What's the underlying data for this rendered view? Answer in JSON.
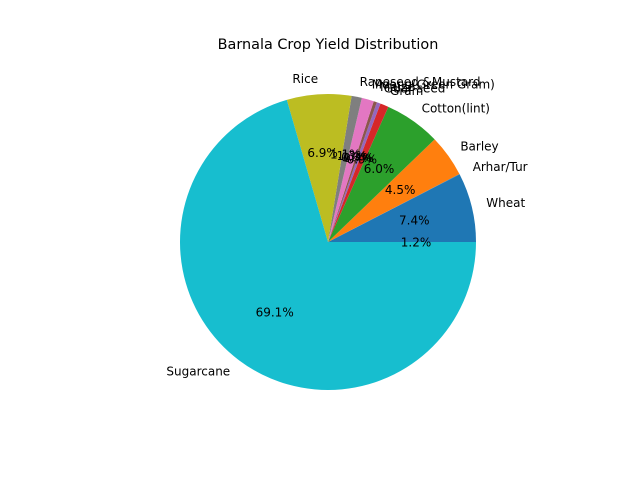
{
  "chart_data": {
    "type": "pie",
    "title": "Barnala Crop Yield Distribution",
    "start_angle_deg": 0,
    "direction": "counterclockwise",
    "slices": [
      {
        "label": "Wheat",
        "value": 7.4,
        "pct_label": "7.4%",
        "color": "#1f77b4"
      },
      {
        "label": "Arhar/Tur",
        "value": 0.05,
        "pct_label": "",
        "color": "#1f77b4"
      },
      {
        "label": "Barley",
        "value": 4.5,
        "pct_label": "4.5%",
        "color": "#ff7f0e"
      },
      {
        "label": "Cotton(lint)",
        "value": 6.0,
        "pct_label": "6.0%",
        "color": "#2ca02c"
      },
      {
        "label": "Gram",
        "value": 0.9,
        "pct_label": "0.9%",
        "color": "#d62728"
      },
      {
        "label": "Guar seed",
        "value": 0.4,
        "pct_label": "0.4%",
        "color": "#9467bd"
      },
      {
        "label": "Maize",
        "value": 0.35,
        "pct_label": "0.3%",
        "color": "#8c564b"
      },
      {
        "label": "Moong(Green Gram)",
        "value": 1.3,
        "pct_label": "1.3%",
        "color": "#e377c2"
      },
      {
        "label": "Rapeseed &Mustard",
        "value": 1.1,
        "pct_label": "1.1%",
        "color": "#7f7f7f"
      },
      {
        "label": "Rice",
        "value": 6.9,
        "pct_label": "6.9%",
        "color": "#bcbd22"
      },
      {
        "label": "Sugarcane",
        "value": 69.1,
        "pct_label": "69.1%",
        "color": "#17becf"
      }
    ],
    "extra_pct_label": "1.2%"
  }
}
